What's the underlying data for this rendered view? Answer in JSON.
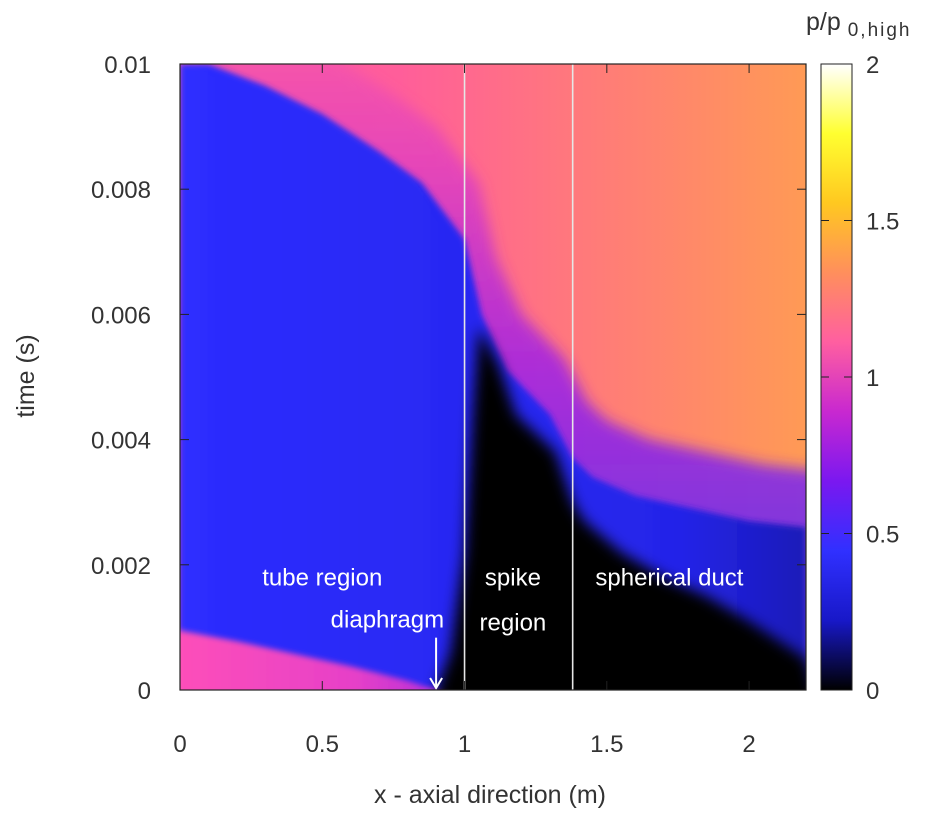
{
  "chart_data": {
    "type": "heatmap",
    "xlabel": "x - axial direction (m)",
    "ylabel": "time (s)",
    "xlim": [
      0,
      2.2
    ],
    "ylim": [
      0,
      0.01
    ],
    "x_ticks": [
      {
        "value": 0,
        "label": "0"
      },
      {
        "value": 0.5,
        "label": "0.5"
      },
      {
        "value": 1,
        "label": "1"
      },
      {
        "value": 1.5,
        "label": "1.5"
      },
      {
        "value": 2,
        "label": "2"
      }
    ],
    "y_ticks": [
      {
        "value": 0,
        "label": "0"
      },
      {
        "value": 0.002,
        "label": "0.002"
      },
      {
        "value": 0.004,
        "label": "0.004"
      },
      {
        "value": 0.006,
        "label": "0.006"
      },
      {
        "value": 0.008,
        "label": "0.008"
      },
      {
        "value": 0.01,
        "label": "0.01"
      }
    ],
    "colorbar": {
      "label_main": "p/p",
      "label_sub": "0,high",
      "range": [
        0,
        2
      ],
      "ticks": [
        {
          "value": 0,
          "label": "0"
        },
        {
          "value": 0.5,
          "label": "0.5"
        },
        {
          "value": 1,
          "label": "1"
        },
        {
          "value": 1.5,
          "label": "1.5"
        },
        {
          "value": 2,
          "label": "2"
        }
      ],
      "palette": [
        "#000000",
        "#1818c8",
        "#3030ff",
        "#7a18f0",
        "#c828d0",
        "#ff5fa0",
        "#ff8f5c",
        "#ffc820",
        "#ffff30",
        "#ffffff"
      ]
    },
    "region_boundaries_x": [
      1.0,
      1.38
    ],
    "region_labels": [
      {
        "lines": [
          "tube region"
        ],
        "x": 0.5,
        "t": 0.0017
      },
      {
        "lines": [
          "spike",
          "region"
        ],
        "x": 1.17,
        "t": 0.0017
      },
      {
        "lines": [
          "spherical duct"
        ],
        "x": 1.72,
        "t": 0.0017
      }
    ],
    "annotation": {
      "text": "diaphragm",
      "arrow_x": 0.9,
      "arrow_t_top": 0.0009,
      "arrow_t_bottom": 0.0
    },
    "fronts": {
      "rarefaction_head": [
        [
          0.1,
          0.01
        ],
        [
          0.3,
          0.00965
        ],
        [
          0.5,
          0.0092
        ],
        [
          0.7,
          0.0086
        ],
        [
          0.85,
          0.0081
        ],
        [
          0.95,
          0.0075
        ],
        [
          1.0,
          0.0072
        ],
        [
          1.02,
          0.0068
        ],
        [
          1.06,
          0.006
        ],
        [
          1.15,
          0.0051
        ],
        [
          1.3,
          0.0044
        ],
        [
          1.38,
          0.0037
        ],
        [
          1.45,
          0.0034
        ],
        [
          1.6,
          0.0031
        ],
        [
          1.8,
          0.0029
        ],
        [
          2.0,
          0.0027
        ],
        [
          2.2,
          0.0026
        ]
      ],
      "dark_region_edge": [
        [
          0.9,
          0.0
        ],
        [
          0.95,
          0.0006
        ],
        [
          1.0,
          0.0022
        ],
        [
          1.03,
          0.0045
        ],
        [
          1.05,
          0.0058
        ],
        [
          1.12,
          0.0052
        ],
        [
          1.18,
          0.0044
        ],
        [
          1.25,
          0.0041
        ],
        [
          1.32,
          0.0038
        ],
        [
          1.38,
          0.003
        ],
        [
          1.42,
          0.0027
        ],
        [
          1.55,
          0.0022
        ],
        [
          1.7,
          0.0018
        ],
        [
          1.85,
          0.0015
        ],
        [
          2.0,
          0.0011
        ],
        [
          2.1,
          0.0008
        ],
        [
          2.2,
          0.0005
        ]
      ],
      "initial_interface": [
        [
          0.0,
          0.00095
        ],
        [
          0.2,
          0.00078
        ],
        [
          0.4,
          0.00058
        ],
        [
          0.6,
          0.00038
        ],
        [
          0.8,
          0.00015
        ],
        [
          0.9,
          0.0
        ]
      ]
    }
  }
}
